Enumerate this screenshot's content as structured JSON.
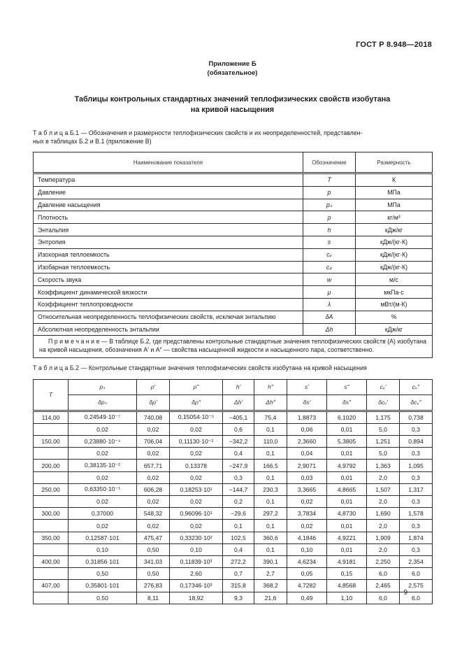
{
  "page": {
    "header_right": "ГОСТ Р 8.948—2018",
    "page_number": "9"
  },
  "appendix": {
    "title": "Приложение Б",
    "subtitle": "(обязательное)"
  },
  "main_title": {
    "line1": "Таблицы контрольных стандартных значений теплофизических свойств изобутана",
    "line2": "на кривой насыщения"
  },
  "table_b1": {
    "caption_line1": "Т а б л и ц а  Б.1 — Обозначения и размерности теплофизических свойств и их неопределенностей, представлен-",
    "caption_line2": "ных в таблицах Б.2 и В.1 (приложение В)",
    "headers": [
      "Наименование показателя",
      "Обозначение",
      "Размерность"
    ],
    "rows": [
      {
        "name": "Температура",
        "symbol": "T",
        "unit": "К"
      },
      {
        "name": "Давление",
        "symbol": "p",
        "unit": "МПа"
      },
      {
        "name": "Давление насыщения",
        "symbol": "pₛ",
        "unit": "МПа"
      },
      {
        "name": "Плотность",
        "symbol": "ρ",
        "unit": "кг/м³"
      },
      {
        "name": "Энтальпия",
        "symbol": "h",
        "unit": "кДж/кг"
      },
      {
        "name": "Энтропия",
        "symbol": "s",
        "unit": "кДж/(кг·К)"
      },
      {
        "name": "Изохорная теплоемкость",
        "symbol": "cᵥ",
        "unit": "кДж/(кг·К)"
      },
      {
        "name": "Изобарная теплоемкость",
        "symbol": "cₚ",
        "unit": "кДж/(кг·К)"
      },
      {
        "name": "Скорость звука",
        "symbol": "w",
        "unit": "м/с"
      },
      {
        "name": "Коэффициент динамической вязкости",
        "symbol": "μ",
        "unit": "мкПа·с"
      },
      {
        "name": "Коэффициент теплопроводности",
        "symbol": "λ",
        "unit": "мВт/(м·К)"
      },
      {
        "name": "Относительная неопределенность теплофизических свойств, исключая энтальпию",
        "symbol": "δA",
        "unit": "%"
      },
      {
        "name": "Абсолютная неопределенность энтальпии",
        "symbol": "Δh",
        "unit": "кДж/кг"
      }
    ],
    "note": "П р и м е ч а н и е  — В таблице Б.2, где представлены контрольные стандартные значения теплофизических свойств (A) изобутана на кривой насыщения, обозначения A′ и A″ — свойства насыщенной жидкости и насыщенного пара, соответственно."
  },
  "table_b2": {
    "caption": "Т а б л и ц а  Б.2 — Контрольные стандартные значения теплофизических свойств изобутана на кривой насыщения",
    "header": {
      "t": "T",
      "cols": [
        [
          "pₛ",
          "δpₛ"
        ],
        [
          "ρ′",
          "δρ′"
        ],
        [
          "ρ″",
          "δρ″"
        ],
        [
          "h′",
          "Δh′"
        ],
        [
          "h″",
          "Δh″"
        ],
        [
          "s′",
          "δs′"
        ],
        [
          "s″",
          "δs″"
        ],
        [
          "cᵥ′",
          "δcᵥ′"
        ],
        [
          "cᵥ″",
          "δcᵥ″"
        ]
      ]
    },
    "rows": [
      {
        "t": "114,00",
        "values": [
          "0,24549·10⁻⁷",
          "740,08",
          "0,15054·10⁻⁵",
          "−405,1",
          "75,4",
          "1,8873",
          "6,1020",
          "1,175",
          "0,738"
        ],
        "uncertainties": [
          "0,02",
          "0,02",
          "0,02",
          "0,6",
          "0,1",
          "0,06",
          "0,01",
          "5,0",
          "0,3"
        ]
      },
      {
        "t": "150,00",
        "values": [
          "0,23880·10⁻⁴",
          "706,04",
          "0,11130·10⁻²",
          "−342,2",
          "110,0",
          "2,3660",
          "5,3805",
          "1,251",
          "0,894"
        ],
        "uncertainties": [
          "0,02",
          "0,02",
          "0,02",
          "0,4",
          "0,1",
          "0,04",
          "0,01",
          "5,0",
          "0,3"
        ]
      },
      {
        "t": "200,00",
        "values": [
          "0,38135·10⁻²",
          "657,71",
          "0,13378",
          "−247,9",
          "166,5",
          "2,9071",
          "4,9792",
          "1,363",
          "1,095"
        ],
        "uncertainties": [
          "0,02",
          "0,02",
          "0,02",
          "0,3",
          "0,1",
          "0,03",
          "0,01",
          "2,0",
          "0,3"
        ]
      },
      {
        "t": "250,00",
        "values": [
          "0,63350·10⁻¹",
          "606,28",
          "0,18253·10¹",
          "−144,7",
          "230,3",
          "3,3665",
          "4,8665",
          "1,507",
          "1,317"
        ],
        "uncertainties": [
          "0,02",
          "0,02",
          "0,02",
          "0,2",
          "0,1",
          "0,02",
          "0,01",
          "2,0",
          "0,3"
        ]
      },
      {
        "t": "300,00",
        "values": [
          "0,37000",
          "548,32",
          "0,96096·10¹",
          "−29,6",
          "297,2",
          "3,7834",
          "4,8730",
          "1,690",
          "1,578"
        ],
        "uncertainties": [
          "0,02",
          "0,02",
          "0,02",
          "0,1",
          "0,1",
          "0,02",
          "0,01",
          "2,0",
          "0,3"
        ]
      },
      {
        "t": "350,00",
        "values": [
          "0,12587·101",
          "475,47",
          "0,33230·10²",
          "102,5",
          "360,6",
          "4,1846",
          "4,9221",
          "1,909",
          "1,874"
        ],
        "uncertainties": [
          "0,10",
          "0,50",
          "0,10",
          "0,4",
          "0,1",
          "0,10",
          "0,01",
          "2,0",
          "0,3"
        ]
      },
      {
        "t": "400,00",
        "values": [
          "0,31856·101",
          "341,03",
          "0,11839·10³",
          "272,2",
          "390,1",
          "4,6234",
          "4,9181",
          "2,250",
          "2,354"
        ],
        "uncertainties": [
          "0,50",
          "0,50",
          "2,60",
          "0,7",
          "2,7",
          "0,05",
          "0,15",
          "6,0",
          "6,0"
        ]
      },
      {
        "t": "407,00",
        "values": [
          "0,35801·101",
          "276,83",
          "0,17346·10³",
          "315,8",
          "368,2",
          "4,7282",
          "4,8568",
          "2,465",
          "2,575"
        ],
        "uncertainties": [
          "0,50",
          "8,11",
          "18,92",
          "9,3",
          "21,6",
          "0,49",
          "1,10",
          "6,0",
          "6,0"
        ]
      }
    ]
  }
}
